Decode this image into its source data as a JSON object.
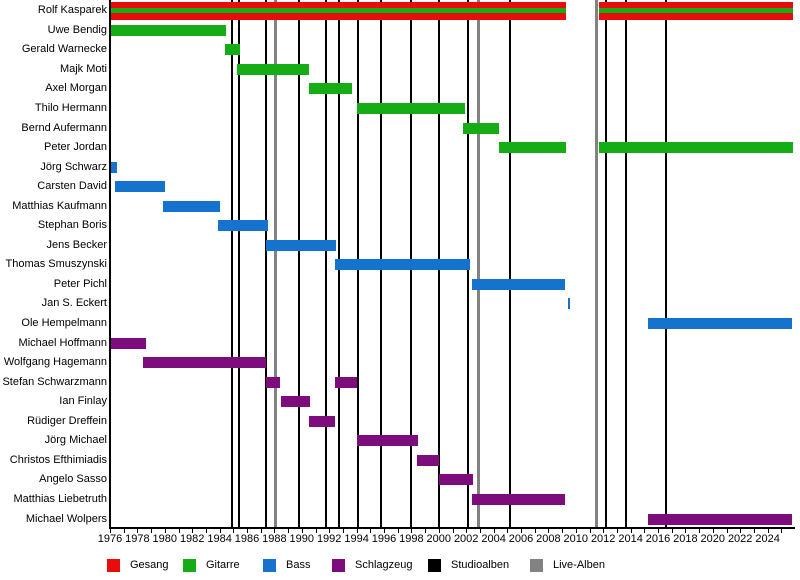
{
  "chart_data": {
    "type": "gantt",
    "subtype": "band-membership-timeline",
    "x_axis": {
      "range": [
        1976,
        2026
      ],
      "tick_years_labeled": [
        1976,
        1978,
        1980,
        1982,
        1984,
        1986,
        1988,
        1990,
        1992,
        1994,
        1996,
        1998,
        2000,
        2002,
        2004,
        2006,
        2008,
        2010,
        2012,
        2014,
        2016,
        2018,
        2020,
        2022,
        2024
      ],
      "minor_tick_every_years": 1,
      "grid": "off"
    },
    "members": [
      {
        "name": "Rolf Kasparek",
        "roles": [
          "gesang",
          "gitarre"
        ],
        "stints": [
          [
            1976.0,
            2009.3
          ],
          [
            2011.7,
            2025.85
          ]
        ]
      },
      {
        "name": "Uwe Bendig",
        "roles": [
          "gitarre"
        ],
        "stints": [
          [
            1976.0,
            1984.5
          ]
        ]
      },
      {
        "name": "Gerald Warnecke",
        "roles": [
          "gitarre"
        ],
        "stints": [
          [
            1984.4,
            1985.5
          ]
        ]
      },
      {
        "name": "Majk Moti",
        "roles": [
          "gitarre"
        ],
        "stints": [
          [
            1985.3,
            1990.5
          ]
        ]
      },
      {
        "name": "Axel Morgan",
        "roles": [
          "gitarre"
        ],
        "stints": [
          [
            1990.5,
            1993.7
          ]
        ]
      },
      {
        "name": "Thilo Hermann",
        "roles": [
          "gitarre"
        ],
        "stints": [
          [
            1994.0,
            2001.9
          ]
        ]
      },
      {
        "name": "Bernd Aufermann",
        "roles": [
          "gitarre"
        ],
        "stints": [
          [
            2001.8,
            2004.4
          ]
        ]
      },
      {
        "name": "Peter Jordan",
        "roles": [
          "gitarre"
        ],
        "stints": [
          [
            2004.4,
            2009.3
          ],
          [
            2011.7,
            2025.85
          ]
        ]
      },
      {
        "name": "Jörg Schwarz",
        "roles": [
          "bass"
        ],
        "stints": [
          [
            1976.0,
            1976.5
          ]
        ]
      },
      {
        "name": "Carsten David",
        "roles": [
          "bass"
        ],
        "stints": [
          [
            1976.4,
            1980.0
          ]
        ]
      },
      {
        "name": "Matthias Kaufmann",
        "roles": [
          "bass"
        ],
        "stints": [
          [
            1979.9,
            1984.0
          ]
        ]
      },
      {
        "name": "Stephan Boris",
        "roles": [
          "bass"
        ],
        "stints": [
          [
            1983.9,
            1987.5
          ]
        ]
      },
      {
        "name": "Jens Becker",
        "roles": [
          "bass"
        ],
        "stints": [
          [
            1987.4,
            1992.5
          ]
        ]
      },
      {
        "name": "Thomas Smuszynski",
        "roles": [
          "bass"
        ],
        "stints": [
          [
            1992.4,
            2002.3
          ]
        ]
      },
      {
        "name": "Peter Pichl",
        "roles": [
          "bass"
        ],
        "stints": [
          [
            2002.4,
            2009.2
          ]
        ]
      },
      {
        "name": "Jan S. Eckert",
        "roles": [
          "bass"
        ],
        "stints": [
          [
            2009.4,
            2009.6
          ]
        ]
      },
      {
        "name": "Ole Hempelmann",
        "roles": [
          "bass"
        ],
        "stints": [
          [
            2015.3,
            2025.8
          ]
        ]
      },
      {
        "name": "Michael Hoffmann",
        "roles": [
          "schlagzeug"
        ],
        "stints": [
          [
            1976.0,
            1978.6
          ]
        ]
      },
      {
        "name": "Wolfgang Hagemann",
        "roles": [
          "schlagzeug"
        ],
        "stints": [
          [
            1978.4,
            1987.4
          ]
        ]
      },
      {
        "name": "Stefan Schwarzmann",
        "roles": [
          "schlagzeug"
        ],
        "stints": [
          [
            1987.4,
            1988.4
          ],
          [
            1992.4,
            1994.0
          ]
        ]
      },
      {
        "name": "Ian Finlay",
        "roles": [
          "schlagzeug"
        ],
        "stints": [
          [
            1988.5,
            1990.6
          ]
        ]
      },
      {
        "name": "Rüdiger Dreffein",
        "roles": [
          "schlagzeug"
        ],
        "stints": [
          [
            1990.5,
            1992.4
          ]
        ]
      },
      {
        "name": "Jörg Michael",
        "roles": [
          "schlagzeug"
        ],
        "stints": [
          [
            1994.0,
            1998.5
          ]
        ]
      },
      {
        "name": "Christos Efthimiadis",
        "roles": [
          "schlagzeug"
        ],
        "stints": [
          [
            1998.4,
            2000.0
          ]
        ]
      },
      {
        "name": "Angelo Sasso",
        "roles": [
          "schlagzeug"
        ],
        "stints": [
          [
            2000.0,
            2002.5
          ]
        ]
      },
      {
        "name": "Matthias Liebetruth",
        "roles": [
          "schlagzeug"
        ],
        "stints": [
          [
            2002.4,
            2009.2
          ]
        ]
      },
      {
        "name": "Michael Wolpers",
        "roles": [
          "schlagzeug"
        ],
        "stints": [
          [
            2015.3,
            2025.75
          ]
        ]
      }
    ],
    "albums": {
      "studio_years": [
        1984.9,
        1985.4,
        1987.4,
        1989.8,
        1991.8,
        1992.7,
        1994.1,
        1995.8,
        1998.0,
        2000.0,
        2002.1,
        2005.2,
        2012.2,
        2013.7,
        2016.6
      ],
      "live_years": [
        1988.1,
        2002.9,
        2011.5
      ]
    },
    "legend_position": "bottom"
  },
  "legend": [
    {
      "key": "gesang",
      "label": "Gesang"
    },
    {
      "key": "gitarre",
      "label": "Gitarre"
    },
    {
      "key": "bass",
      "label": "Bass"
    },
    {
      "key": "schlagzeug",
      "label": "Schlagzeug"
    },
    {
      "key": "studioalben",
      "label": "Studioalben"
    },
    {
      "key": "live_alben",
      "label": "Live-Alben"
    }
  ],
  "colors": {
    "gesang": "#E80C0C",
    "gitarre": "#16AC16",
    "bass": "#1573CE",
    "schlagzeug": "#7D0C7D",
    "studioalben": "#000000",
    "live_alben": "#828282",
    "axis": "#000000",
    "background": "#FFFFFF"
  }
}
